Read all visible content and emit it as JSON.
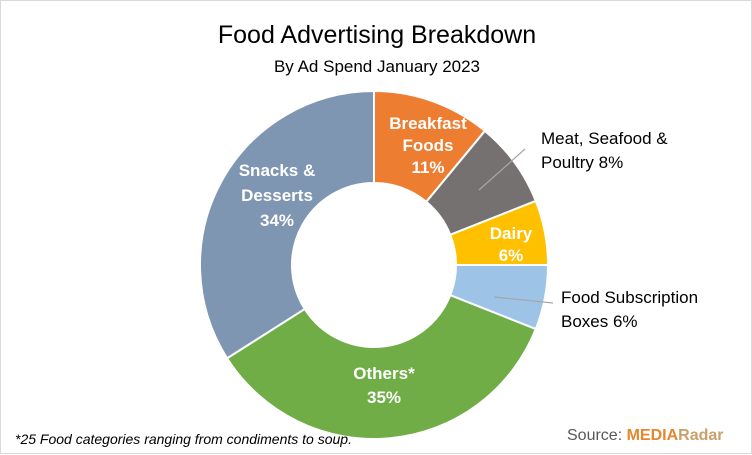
{
  "chart_data": {
    "type": "pie",
    "title": "Food Advertising Breakdown",
    "subtitle": "By Ad Spend January 2023",
    "categories": [
      "Breakfast Foods",
      "Meat, Seafood & Poultry",
      "Dairy",
      "Food Subscription Boxes",
      "Others*",
      "Snacks & Desserts"
    ],
    "values": [
      11,
      8,
      6,
      6,
      35,
      34
    ],
    "unit": "%",
    "colors": [
      "#ED7D31",
      "#767171",
      "#FFC000",
      "#9DC3E6",
      "#70AD47",
      "#7F96B2"
    ],
    "labels": [
      {
        "lines": [
          "Breakfast",
          "Foods",
          "11%"
        ],
        "inside": true
      },
      {
        "lines": [
          "Meat, Seafood &",
          "Poultry 8%"
        ],
        "inside": false
      },
      {
        "lines": [
          "Dairy",
          "6%"
        ],
        "inside": true
      },
      {
        "lines": [
          "Food Subscription",
          "Boxes 6%"
        ],
        "inside": false
      },
      {
        "lines": [
          "Others*",
          "35%"
        ],
        "inside": true
      },
      {
        "lines": [
          "Snacks &",
          "Desserts",
          "34%"
        ],
        "inside": true
      }
    ]
  },
  "footnote": "*25 Food categories ranging from condiments to soup.",
  "source": {
    "prefix": "Source: ",
    "brand_a": "MEDIA",
    "brand_b": "Radar"
  }
}
